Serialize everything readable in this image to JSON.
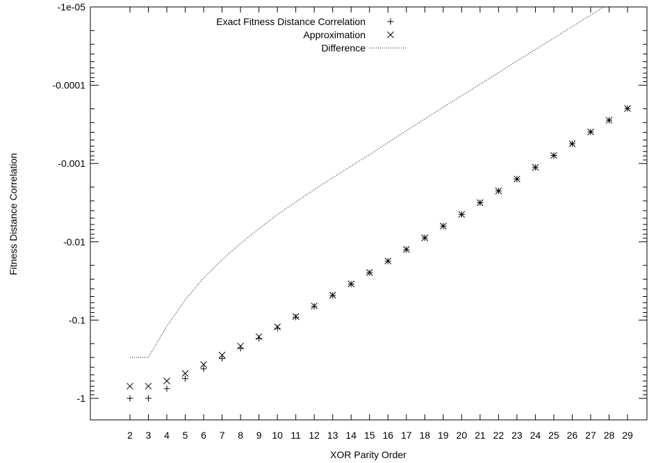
{
  "chart_data": {
    "type": "scatter",
    "title": "",
    "xlabel": "XOR Parity Order",
    "ylabel": "Fitness Distance Correlation",
    "yscale": "log",
    "ylim": [
      -1.3,
      -1e-05
    ],
    "xlim": [
      0,
      29
    ],
    "grid": false,
    "legend_position": "top",
    "xticks": [
      2,
      3,
      4,
      5,
      6,
      7,
      8,
      9,
      10,
      11,
      12,
      13,
      14,
      15,
      16,
      17,
      18,
      19,
      20,
      21,
      22,
      23,
      24,
      25,
      26,
      27,
      28,
      29
    ],
    "yticks": [
      {
        "value": -1,
        "label": "-1"
      },
      {
        "value": -0.1,
        "label": "-0.1"
      },
      {
        "value": -0.01,
        "label": "-0.01"
      },
      {
        "value": -0.001,
        "label": "-0.001"
      },
      {
        "value": -0.0001,
        "label": "-0.0001"
      },
      {
        "value": -1e-05,
        "label": "-1e-05"
      }
    ],
    "series": [
      {
        "name": "Exact Fitness Distance Correlation",
        "marker": "plus",
        "x": [
          2,
          3,
          4,
          5,
          6,
          7,
          8,
          9,
          10,
          11,
          12,
          13,
          14,
          15,
          16,
          17,
          18,
          19,
          20,
          21,
          22,
          23,
          24,
          25,
          26,
          27,
          28,
          29
        ],
        "values": [
          -1,
          -1,
          -0.75,
          -0.56,
          -0.42,
          -0.31,
          -0.23,
          -0.172,
          -0.127,
          -0.092,
          -0.067,
          -0.0485,
          -0.0348,
          -0.0249,
          -0.0177,
          -0.0126,
          -0.0089,
          -0.0063,
          -0.00447,
          -0.00316,
          -0.00224,
          -0.00158,
          -0.00112,
          -0.00079,
          -0.00056,
          -0.000395,
          -0.00028,
          -0.000198
        ]
      },
      {
        "name": "Approximation",
        "marker": "cross",
        "x": [
          2,
          3,
          4,
          5,
          6,
          7,
          8,
          9,
          10,
          11,
          12,
          13,
          14,
          15,
          16,
          17,
          18,
          19,
          20,
          21,
          22,
          23,
          24,
          25,
          26,
          27,
          28,
          29
        ],
        "values": [
          -0.7,
          -0.7,
          -0.6,
          -0.48,
          -0.37,
          -0.28,
          -0.215,
          -0.163,
          -0.122,
          -0.09,
          -0.066,
          -0.048,
          -0.0345,
          -0.0247,
          -0.0176,
          -0.0125,
          -0.0089,
          -0.0063,
          -0.00447,
          -0.00316,
          -0.00224,
          -0.00158,
          -0.00112,
          -0.00079,
          -0.00056,
          -0.000395,
          -0.00028,
          -0.000198
        ]
      },
      {
        "name": "Difference",
        "marker": "dotted-line",
        "x": [
          2,
          3,
          4,
          5,
          6,
          7,
          8,
          9,
          10,
          11,
          12,
          13,
          14,
          15,
          16,
          17,
          18,
          19,
          20,
          21,
          22,
          23,
          24,
          25,
          26,
          27,
          28
        ],
        "values": [
          -0.3,
          -0.3,
          -0.12,
          -0.055,
          -0.029,
          -0.017,
          -0.0105,
          -0.0068,
          -0.0045,
          -0.0031,
          -0.00215,
          -0.00152,
          -0.00108,
          -0.00077,
          -0.00054,
          -0.00038,
          -0.00027,
          -0.000191,
          -0.000136,
          -9.7e-05,
          -6.9e-05,
          -4.9e-05,
          -3.5e-05,
          -2.5e-05,
          -1.78e-05,
          -1.27e-05,
          -9e-06
        ]
      }
    ]
  }
}
